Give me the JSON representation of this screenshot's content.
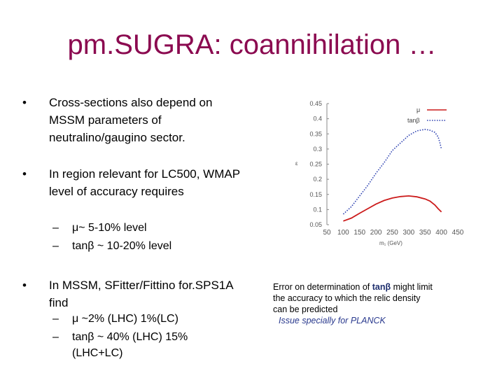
{
  "slide": {
    "title": "pm.SUGRA: coannihilation …",
    "bullets": [
      {
        "mark": "•",
        "text": "Cross-sections also depend on MSSM parameters of neutralino/gaugino sector."
      },
      {
        "mark": "•",
        "text": "In region relevant for LC500, WMAP level of accuracy requires"
      },
      {
        "mark": "•",
        "text": "In MSSM, SFitter/Fittino for.SPS1A find"
      }
    ],
    "subbullets_1": [
      {
        "mark": "–",
        "text": "μ~ 5-10% level"
      },
      {
        "mark": "–",
        "text": "tanβ ~ 10-20% level"
      }
    ],
    "subbullets_2": [
      {
        "mark": "–",
        "text": "μ ~2% (LHC) 1%(LC)"
      },
      {
        "mark": "–",
        "text": "tanβ ~ 40% (LHC) 15%(LHC+LC)"
      }
    ],
    "note": {
      "prefix": "Error  on determination of ",
      "highlight": "tanβ",
      "body": " might limit  the accuracy  to which the relic density can be predicted",
      "issue": "Issue specially for PLANCK"
    },
    "colors": {
      "title": "#8b0a50",
      "red_series": "#cc1c1c",
      "blue_series": "#2a3fb0"
    }
  },
  "chart_data": {
    "type": "line",
    "xlabel": "m₁ (GeV)",
    "ylabel": "ε",
    "xlim": [
      50,
      450
    ],
    "ylim": [
      0.05,
      0.45
    ],
    "x_ticks": [
      "50",
      "100",
      "150",
      "200",
      "250",
      "300",
      "350",
      "400",
      "450"
    ],
    "y_ticks": [
      "0.05",
      "0.1",
      "0.15",
      "0.2",
      "0.25",
      "0.3",
      "0.35",
      "0.4",
      "0.45"
    ],
    "legend_position": "top-right",
    "series": [
      {
        "name": "μ",
        "color": "#cc1c1c",
        "style": "solid",
        "x": [
          100,
          125,
          150,
          175,
          200,
          225,
          250,
          275,
          300,
          325,
          350,
          365,
          380,
          390,
          400
        ],
        "y": [
          0.062,
          0.072,
          0.088,
          0.103,
          0.118,
          0.13,
          0.138,
          0.143,
          0.145,
          0.142,
          0.135,
          0.128,
          0.115,
          0.103,
          0.092
        ]
      },
      {
        "name": "tanβ",
        "color": "#2a3fb0",
        "style": "dotted",
        "x": [
          100,
          125,
          150,
          175,
          200,
          225,
          250,
          275,
          300,
          325,
          350,
          365,
          380,
          390,
          395,
          400
        ],
        "y": [
          0.085,
          0.11,
          0.145,
          0.18,
          0.22,
          0.255,
          0.295,
          0.32,
          0.345,
          0.36,
          0.365,
          0.362,
          0.355,
          0.34,
          0.322,
          0.3
        ]
      }
    ]
  }
}
